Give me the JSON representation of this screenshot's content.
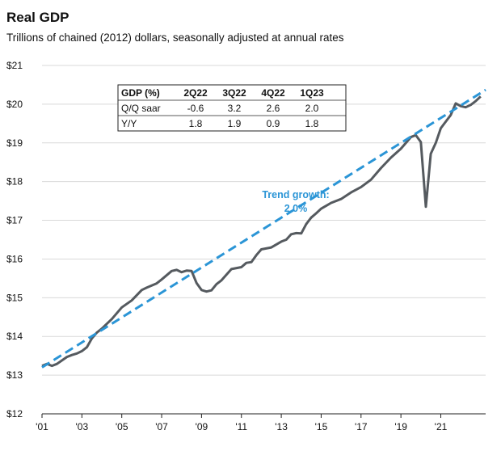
{
  "title": "Real GDP",
  "subtitle": "Trillions of chained (2012) dollars, seasonally adjusted at annual rates",
  "colors": {
    "actual": "#555a5f",
    "trend": "#2b95d6",
    "grid": "#d9d9d9"
  },
  "table": {
    "headers": [
      "GDP (%)",
      "2Q22",
      "3Q22",
      "4Q22",
      "1Q23"
    ],
    "rows": [
      {
        "label": "Q/Q saar",
        "values": [
          "-0.6",
          "3.2",
          "2.6",
          "2.0"
        ]
      },
      {
        "label": "Y/Y",
        "values": [
          "1.8",
          "1.9",
          "0.9",
          "1.8"
        ]
      }
    ]
  },
  "chart_data": {
    "type": "line",
    "xlim": [
      2001,
      2023.25
    ],
    "ylim": [
      12,
      21
    ],
    "y_ticks": [
      12,
      13,
      14,
      15,
      16,
      17,
      18,
      19,
      20,
      21
    ],
    "y_tick_labels": [
      "$12",
      "$13",
      "$14",
      "$15",
      "$16",
      "$17",
      "$18",
      "$19",
      "$20",
      "$21"
    ],
    "x_ticks": [
      2001,
      2003,
      2005,
      2007,
      2009,
      2011,
      2013,
      2015,
      2017,
      2019,
      2021
    ],
    "x_tick_labels": [
      "'01",
      "'03",
      "'05",
      "'07",
      "'09",
      "'11",
      "'13",
      "'15",
      "'17",
      "'19",
      "'21"
    ],
    "grid": "horizontal",
    "annotation": {
      "text_line1": "Trend growth:",
      "text_line2": "2.0%"
    },
    "series": [
      {
        "style": "solid",
        "x": [
          2001.0,
          2001.25,
          2001.5,
          2001.75,
          2002.0,
          2002.25,
          2002.5,
          2002.75,
          2003.0,
          2003.25,
          2003.5,
          2003.75,
          2004.0,
          2004.5,
          2005.0,
          2005.5,
          2006.0,
          2006.25,
          2006.75,
          2007.0,
          2007.5,
          2007.75,
          2008.0,
          2008.25,
          2008.5,
          2008.75,
          2009.0,
          2009.25,
          2009.5,
          2009.75,
          2010.0,
          2010.5,
          2011.0,
          2011.25,
          2011.5,
          2011.75,
          2012.0,
          2012.5,
          2013.0,
          2013.25,
          2013.5,
          2013.75,
          2014.0,
          2014.25,
          2014.5,
          2014.75,
          2015.0,
          2015.5,
          2016.0,
          2016.5,
          2017.0,
          2017.5,
          2018.0,
          2018.5,
          2019.0,
          2019.5,
          2019.75,
          2020.0,
          2020.25,
          2020.5,
          2020.75,
          2021.0,
          2021.25,
          2021.5,
          2021.75,
          2022.0,
          2022.25,
          2022.5,
          2022.75,
          2023.0
        ],
        "values": [
          13.24,
          13.29,
          13.24,
          13.29,
          13.38,
          13.47,
          13.52,
          13.56,
          13.62,
          13.72,
          13.95,
          14.1,
          14.2,
          14.45,
          14.75,
          14.93,
          15.2,
          15.26,
          15.37,
          15.47,
          15.69,
          15.72,
          15.66,
          15.7,
          15.69,
          15.38,
          15.2,
          15.16,
          15.19,
          15.35,
          15.45,
          15.74,
          15.79,
          15.9,
          15.92,
          16.1,
          16.25,
          16.3,
          16.45,
          16.5,
          16.64,
          16.67,
          16.66,
          16.9,
          17.07,
          17.18,
          17.3,
          17.45,
          17.55,
          17.72,
          17.86,
          18.05,
          18.35,
          18.62,
          18.85,
          19.15,
          19.2,
          19.02,
          17.35,
          18.72,
          19.0,
          19.38,
          19.55,
          19.72,
          20.02,
          19.95,
          19.92,
          19.98,
          20.08,
          20.2
        ]
      },
      {
        "style": "dashed",
        "x": [
          2001.0,
          2023.25
        ],
        "values": [
          13.2,
          20.37
        ]
      }
    ]
  }
}
